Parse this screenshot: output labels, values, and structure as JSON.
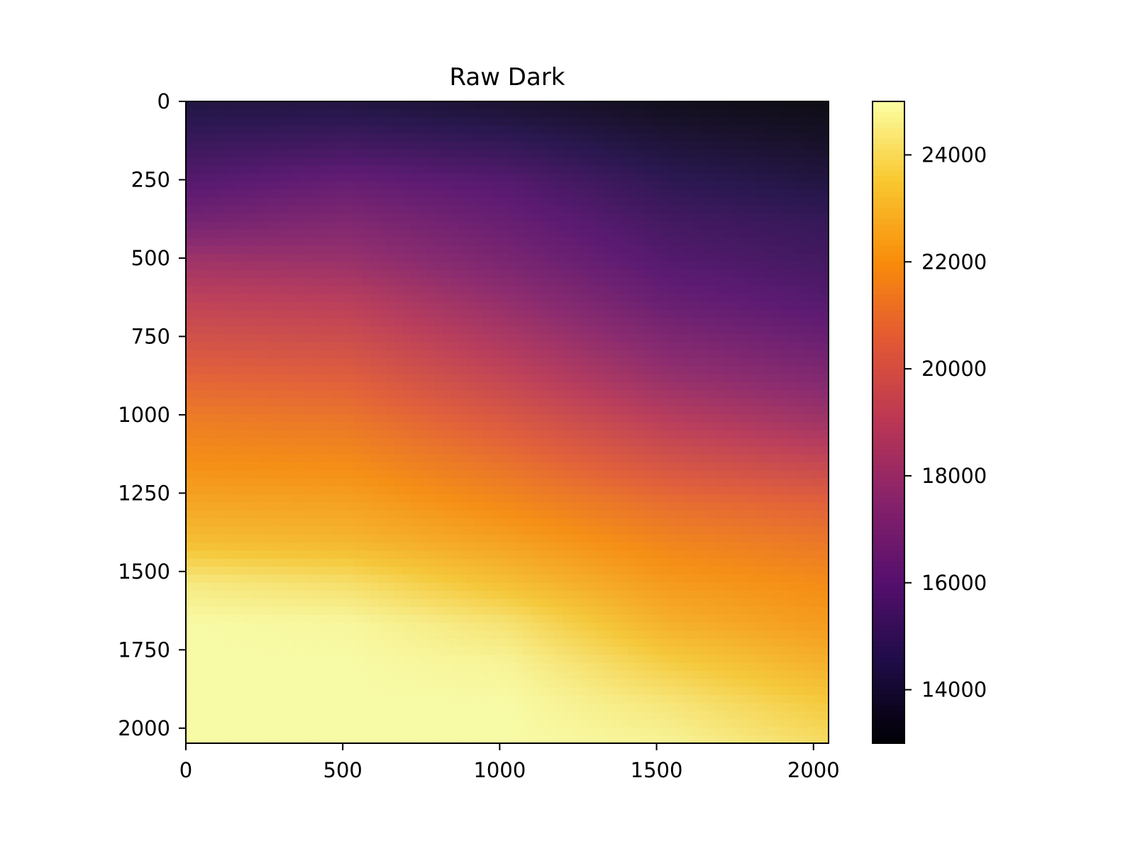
{
  "chart_data": {
    "type": "heatmap",
    "title": "Raw Dark",
    "xlabel": "",
    "ylabel": "",
    "colormap": "inferno",
    "image_shape": [
      2048,
      2048
    ],
    "xlim": [
      0,
      2048
    ],
    "ylim": [
      2048,
      0
    ],
    "y_axis_inverted": true,
    "x_ticks": [
      0,
      500,
      1000,
      1500,
      2000
    ],
    "x_tick_labels": [
      "0",
      "500",
      "1000",
      "1500",
      "2000"
    ],
    "y_ticks": [
      0,
      250,
      500,
      750,
      1000,
      1250,
      1500,
      1750,
      2000
    ],
    "y_tick_labels": [
      "0",
      "250",
      "500",
      "750",
      "1000",
      "1250",
      "1500",
      "1750",
      "2000"
    ],
    "colorbar": {
      "vmin": 13000,
      "vmax": 25000,
      "ticks": [
        14000,
        16000,
        18000,
        20000,
        22000,
        24000
      ],
      "tick_labels": [
        "14000",
        "16000",
        "18000",
        "20000",
        "22000",
        "24000"
      ],
      "placement": "right"
    },
    "x_samples": [
      0,
      512,
      1024,
      1536,
      2048
    ],
    "y_samples": [
      0,
      128,
      256,
      384,
      512,
      640,
      768,
      896,
      1024,
      1152,
      1280,
      1408,
      1536,
      1664,
      1792,
      1920,
      2048
    ],
    "values": [
      [
        14200,
        14200,
        13800,
        13300,
        13100
      ],
      [
        15000,
        15200,
        14800,
        14000,
        13600
      ],
      [
        15800,
        16300,
        15800,
        14700,
        14200
      ],
      [
        16800,
        17200,
        16400,
        15300,
        14900
      ],
      [
        18200,
        18000,
        17000,
        15800,
        15300
      ],
      [
        19200,
        19000,
        17800,
        16400,
        15800
      ],
      [
        20000,
        19800,
        18600,
        17200,
        16500
      ],
      [
        20800,
        20600,
        19400,
        18000,
        17300
      ],
      [
        21500,
        21300,
        20300,
        19000,
        18200
      ],
      [
        22000,
        21900,
        21100,
        20000,
        19400
      ],
      [
        22600,
        22500,
        21800,
        21000,
        20600
      ],
      [
        23300,
        23100,
        22500,
        21700,
        21300
      ],
      [
        24500,
        24200,
        23300,
        22300,
        21900
      ],
      [
        25000,
        24900,
        24300,
        22900,
        22300
      ],
      [
        25000,
        25000,
        24800,
        23700,
        22900
      ],
      [
        25000,
        25000,
        25000,
        24400,
        23600
      ],
      [
        25000,
        25000,
        25000,
        24800,
        24100
      ]
    ],
    "grid": false,
    "legend": "none"
  }
}
